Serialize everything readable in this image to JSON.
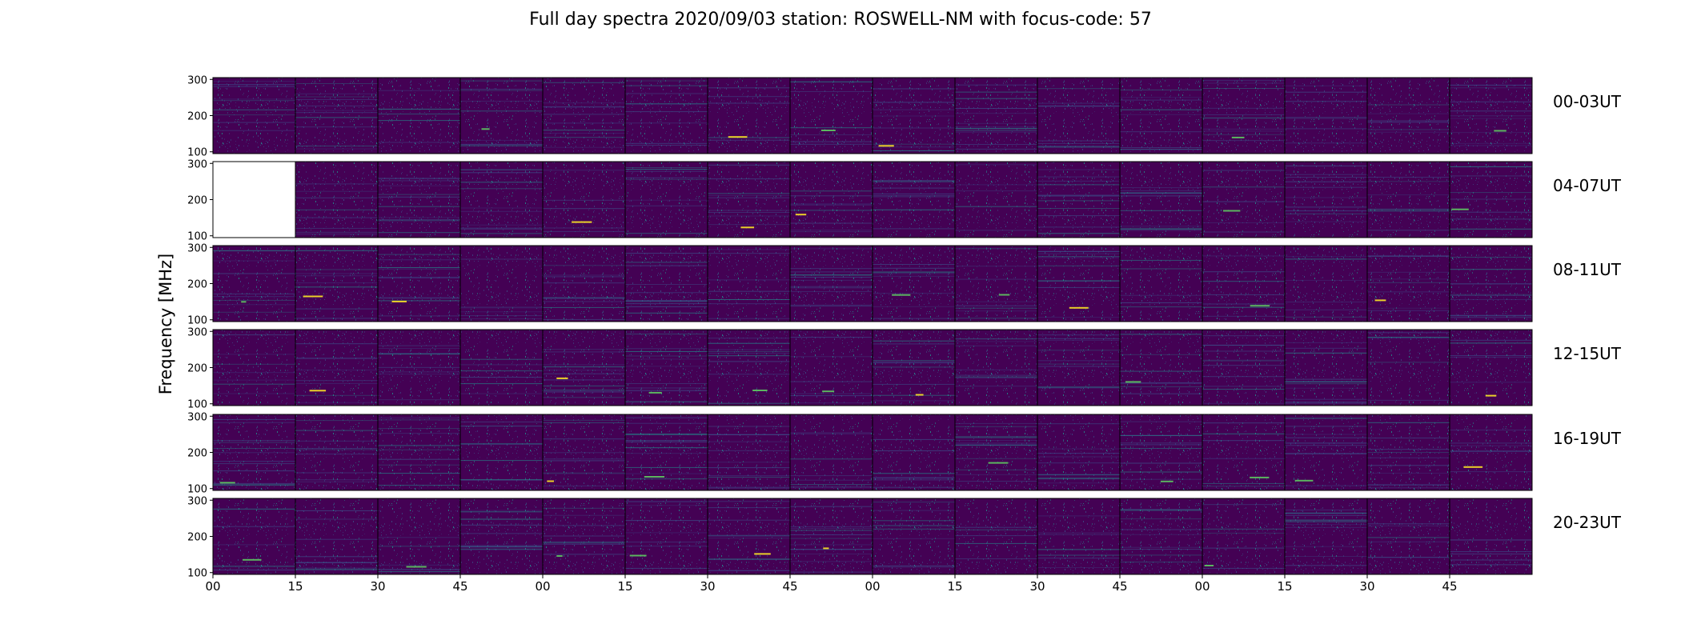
{
  "chart_data": {
    "type": "heatmap",
    "title": "Full day spectra 2020/09/03 station: ROSWELL-NM with focus-code: 57",
    "ylabel": "Frequency [MHz]",
    "xlabel": "",
    "ylim": [
      95,
      305
    ],
    "y_ticks": [
      100,
      200,
      300
    ],
    "x_ticks": [
      "00",
      "15",
      "30",
      "45",
      "00",
      "15",
      "30",
      "45",
      "00",
      "15",
      "30",
      "45",
      "00",
      "15",
      "30",
      "45"
    ],
    "colormap": "viridis",
    "panels_per_row": 16,
    "rows": [
      {
        "label": "00-03UT",
        "missing_panels": []
      },
      {
        "label": "04-07UT",
        "missing_panels": [
          0
        ]
      },
      {
        "label": "08-11UT",
        "missing_panels": []
      },
      {
        "label": "12-15UT",
        "missing_panels": []
      },
      {
        "label": "16-19UT",
        "missing_panels": []
      },
      {
        "label": "20-23UT",
        "missing_panels": []
      }
    ],
    "colors": {
      "background": "#440154",
      "low": "#3b528b",
      "mid": "#21918c",
      "high": "#5ec962",
      "peak": "#fde725"
    }
  }
}
